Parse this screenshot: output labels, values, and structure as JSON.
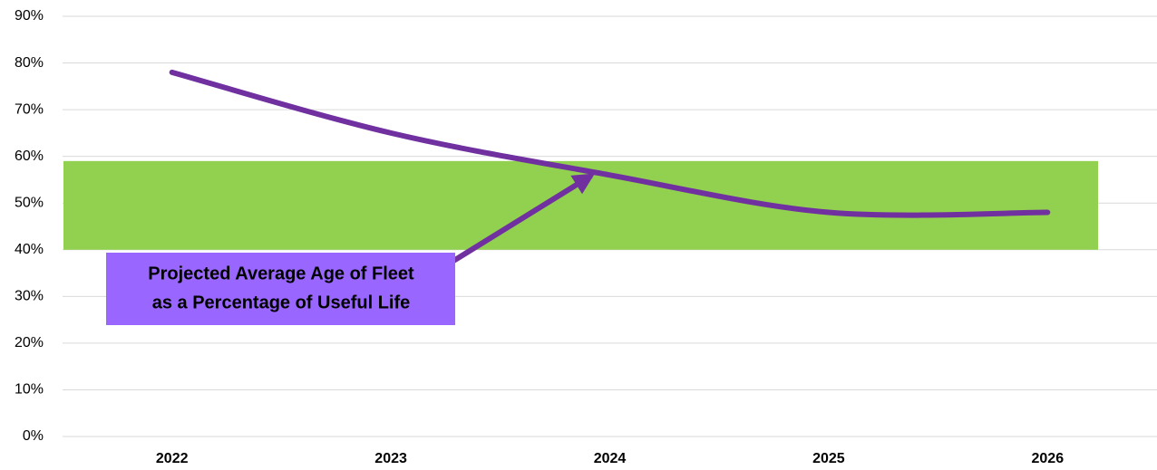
{
  "chart_data": {
    "type": "line",
    "categories": [
      "2022",
      "2023",
      "2024",
      "2025",
      "2026"
    ],
    "series": [
      {
        "name": "Projected Average Age of Fleet",
        "color": "#7030a0",
        "values": [
          78,
          65,
          56,
          48,
          48
        ]
      }
    ],
    "ylim": [
      0,
      90
    ],
    "yticks": [
      {
        "value": 0,
        "label": "0%"
      },
      {
        "value": 10,
        "label": "10%"
      },
      {
        "value": 20,
        "label": "20%"
      },
      {
        "value": 30,
        "label": "30%"
      },
      {
        "value": 40,
        "label": "40%"
      },
      {
        "value": 50,
        "label": "50%"
      },
      {
        "value": 60,
        "label": "60%"
      },
      {
        "value": 70,
        "label": "70%"
      },
      {
        "value": 80,
        "label": "80%"
      },
      {
        "value": 90,
        "label": "90%"
      }
    ],
    "grid": true,
    "target_band": {
      "from": 40,
      "to": 59,
      "color": "#92d050"
    },
    "annotation": {
      "lines": [
        "Projected Average Age of Fleet",
        "as a Percentage of Useful Life"
      ],
      "color": "#9966ff"
    }
  }
}
